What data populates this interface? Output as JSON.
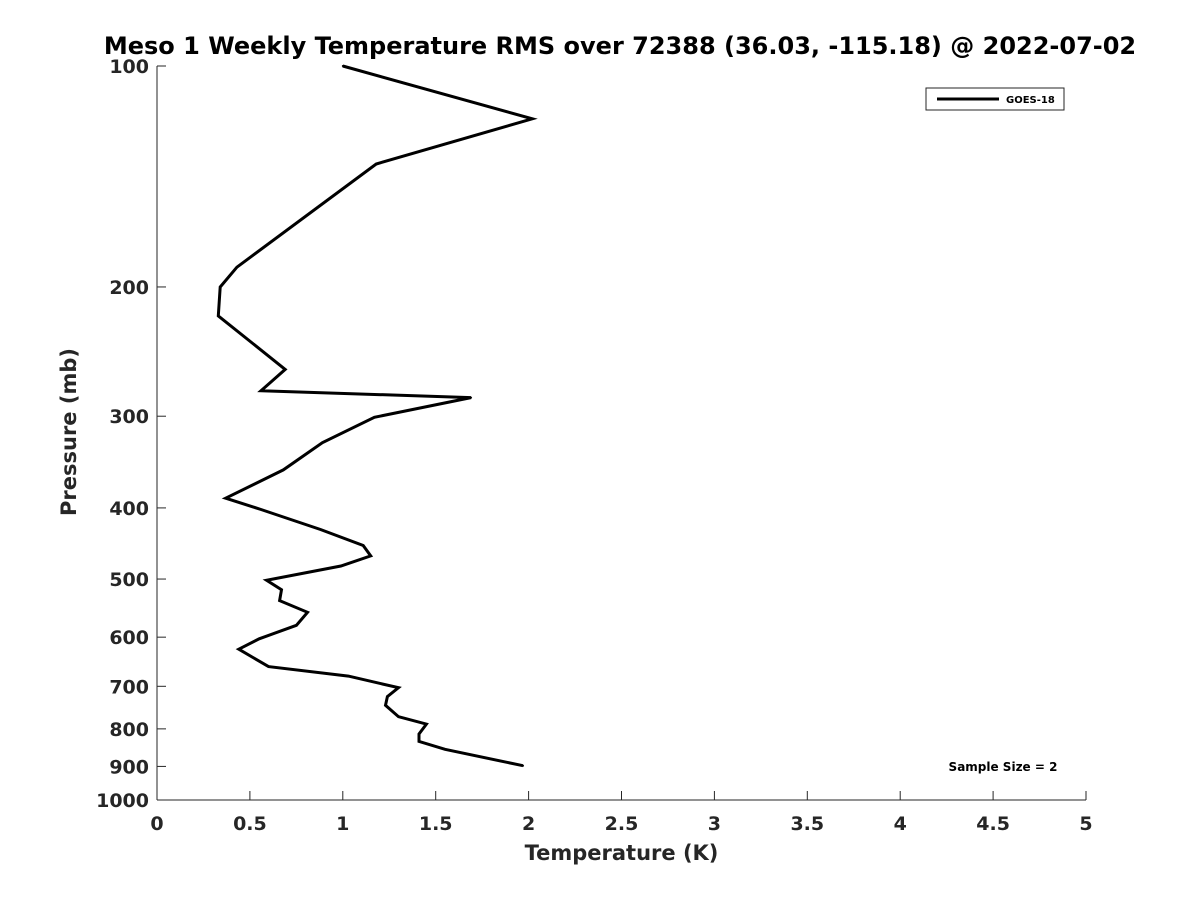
{
  "chart_data": {
    "type": "line",
    "title": "Meso 1 Weekly Temperature RMS over 72388 (36.03, -115.18) @ 2022-07-02",
    "xlabel": "Temperature (K)",
    "ylabel": "Pressure (mb)",
    "xlim": [
      0,
      5
    ],
    "ylim": [
      100,
      1000
    ],
    "y_scale": "log",
    "y_direction": "reversed",
    "grid": false,
    "legend_position": "top-right",
    "x_ticks": [
      0,
      0.5,
      1,
      1.5,
      2,
      2.5,
      3,
      3.5,
      4,
      4.5,
      5
    ],
    "x_tick_labels": [
      "0",
      "0.5",
      "1",
      "1.5",
      "2",
      "2.5",
      "3",
      "3.5",
      "4",
      "4.5",
      "5"
    ],
    "y_ticks": [
      100,
      200,
      300,
      400,
      500,
      600,
      700,
      800,
      900,
      1000
    ],
    "y_tick_labels": [
      "100",
      "200",
      "300",
      "400",
      "500",
      "600",
      "700",
      "800",
      "900",
      "1000"
    ],
    "annotation": "Sample Size = 2",
    "series": [
      {
        "name": "GOES-18",
        "color": "#000000",
        "points": [
          {
            "x": 1.0,
            "y": 100
          },
          {
            "x": 2.02,
            "y": 118
          },
          {
            "x": 1.18,
            "y": 136
          },
          {
            "x": 0.43,
            "y": 188
          },
          {
            "x": 0.34,
            "y": 200
          },
          {
            "x": 0.33,
            "y": 219
          },
          {
            "x": 0.69,
            "y": 259
          },
          {
            "x": 0.56,
            "y": 277
          },
          {
            "x": 1.69,
            "y": 283
          },
          {
            "x": 1.17,
            "y": 301
          },
          {
            "x": 0.89,
            "y": 326
          },
          {
            "x": 0.68,
            "y": 355
          },
          {
            "x": 0.37,
            "y": 388
          },
          {
            "x": 0.56,
            "y": 402
          },
          {
            "x": 0.88,
            "y": 428
          },
          {
            "x": 1.11,
            "y": 450
          },
          {
            "x": 1.15,
            "y": 465
          },
          {
            "x": 0.99,
            "y": 480
          },
          {
            "x": 0.59,
            "y": 502
          },
          {
            "x": 0.67,
            "y": 517
          },
          {
            "x": 0.66,
            "y": 535
          },
          {
            "x": 0.81,
            "y": 555
          },
          {
            "x": 0.75,
            "y": 578
          },
          {
            "x": 0.55,
            "y": 603
          },
          {
            "x": 0.44,
            "y": 623
          },
          {
            "x": 0.6,
            "y": 658
          },
          {
            "x": 1.03,
            "y": 678
          },
          {
            "x": 1.3,
            "y": 703
          },
          {
            "x": 1.24,
            "y": 723
          },
          {
            "x": 1.23,
            "y": 743
          },
          {
            "x": 1.3,
            "y": 770
          },
          {
            "x": 1.45,
            "y": 788
          },
          {
            "x": 1.41,
            "y": 813
          },
          {
            "x": 1.41,
            "y": 832
          },
          {
            "x": 1.55,
            "y": 853
          },
          {
            "x": 1.97,
            "y": 898
          }
        ]
      }
    ]
  }
}
